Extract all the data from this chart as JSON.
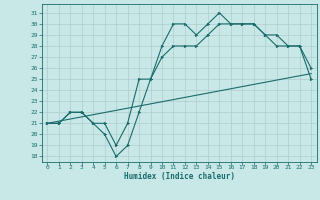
{
  "title": "",
  "xlabel": "Humidex (Indice chaleur)",
  "ylabel": "",
  "background_color": "#c8e8e8",
  "grid_color": "#b0cccc",
  "line_color": "#1a6b6b",
  "xlim": [
    -0.5,
    23.5
  ],
  "ylim": [
    17.5,
    31.8
  ],
  "xticks": [
    0,
    1,
    2,
    3,
    4,
    5,
    6,
    7,
    8,
    9,
    10,
    11,
    12,
    13,
    14,
    15,
    16,
    17,
    18,
    19,
    20,
    21,
    22,
    23
  ],
  "yticks": [
    18,
    19,
    20,
    21,
    22,
    23,
    24,
    25,
    26,
    27,
    28,
    29,
    30,
    31
  ],
  "line1_x": [
    0,
    1,
    2,
    3,
    4,
    5,
    6,
    7,
    8,
    9,
    10,
    11,
    12,
    13,
    14,
    15,
    16,
    17,
    18,
    19,
    20,
    21,
    22,
    23
  ],
  "line1_y": [
    21,
    21,
    22,
    22,
    21,
    20,
    18,
    19,
    22,
    25,
    28,
    30,
    30,
    29,
    30,
    31,
    30,
    30,
    30,
    29,
    28,
    28,
    28,
    25
  ],
  "line2_x": [
    0,
    1,
    2,
    3,
    4,
    5,
    6,
    7,
    8,
    9,
    10,
    11,
    12,
    13,
    14,
    15,
    16,
    17,
    18,
    19,
    20,
    21,
    22,
    23
  ],
  "line2_y": [
    21,
    21,
    22,
    22,
    21,
    21,
    19,
    21,
    25,
    25,
    27,
    28,
    28,
    28,
    29,
    30,
    30,
    30,
    30,
    29,
    29,
    28,
    28,
    26
  ],
  "line3_x": [
    0,
    23
  ],
  "line3_y": [
    21,
    25.5
  ]
}
